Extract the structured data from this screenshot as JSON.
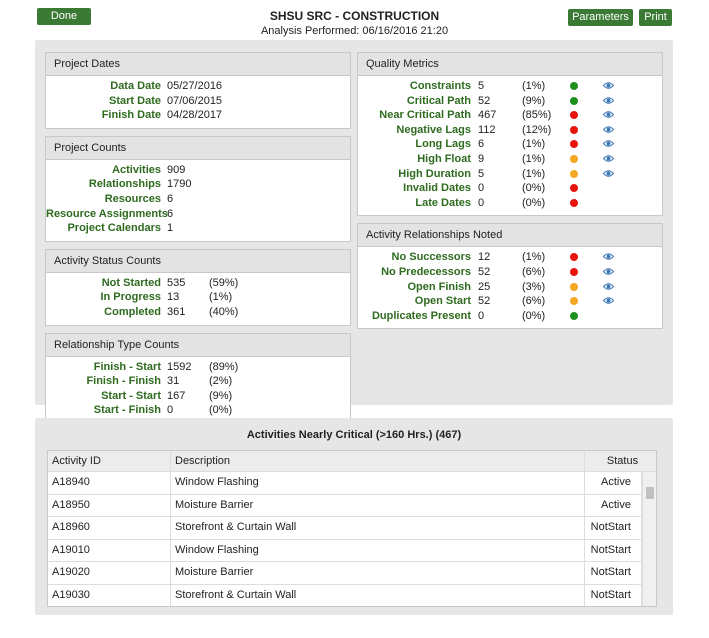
{
  "header": {
    "done": "Done",
    "title": "SHSU SRC - CONSTRUCTION",
    "subtitle": "Analysis Performed: 06/16/2016 21:20",
    "parameters": "Parameters",
    "print": "Print"
  },
  "left_panels": [
    {
      "title": "Project Dates",
      "rows": [
        {
          "label": "Data Date",
          "value": "05/27/2016"
        },
        {
          "label": "Start Date",
          "value": "07/06/2015"
        },
        {
          "label": "Finish Date",
          "value": "04/28/2017"
        }
      ]
    },
    {
      "title": "Project Counts",
      "rows": [
        {
          "label": "Activities",
          "value": 909
        },
        {
          "label": "Relationships",
          "value": 1790
        },
        {
          "label": "Resources",
          "value": 6
        },
        {
          "label": "Resource Assignments",
          "value": 6
        },
        {
          "label": "Project Calendars",
          "value": 1
        }
      ]
    },
    {
      "title": "Activity Status Counts",
      "rows": [
        {
          "label": "Not Started",
          "value": 535,
          "percent": "(59%)"
        },
        {
          "label": "In Progress",
          "value": 13,
          "percent": "(1%)"
        },
        {
          "label": "Completed",
          "value": 361,
          "percent": "(40%)"
        }
      ]
    },
    {
      "title": "Relationship Type Counts",
      "rows": [
        {
          "label": "Finish - Start",
          "value": 1592,
          "percent": "(89%)"
        },
        {
          "label": "Finish - Finish",
          "value": 31,
          "percent": "(2%)"
        },
        {
          "label": "Start - Start",
          "value": 167,
          "percent": "(9%)"
        },
        {
          "label": "Start - Finish",
          "value": 0,
          "percent": "(0%)"
        }
      ]
    }
  ],
  "right_panels": [
    {
      "title": "Quality Metrics",
      "rows": [
        {
          "label": "Constraints",
          "value": 5,
          "percent": "(1%)",
          "status": "#1f8f1f",
          "view": true
        },
        {
          "label": "Critical Path",
          "value": 52,
          "percent": "(9%)",
          "status": "#1f8f1f",
          "view": true
        },
        {
          "label": "Near Critical Path",
          "value": 467,
          "percent": "(85%)",
          "status": "#e8140e",
          "view": true
        },
        {
          "label": "Negative Lags",
          "value": 112,
          "percent": "(12%)",
          "status": "#e8140e",
          "view": true
        },
        {
          "label": "Long Lags",
          "value": 6,
          "percent": "(1%)",
          "status": "#e8140e",
          "view": true
        },
        {
          "label": "High Float",
          "value": 9,
          "percent": "(1%)",
          "status": "#f5a623",
          "view": true
        },
        {
          "label": "High Duration",
          "value": 5,
          "percent": "(1%)",
          "status": "#f5a623",
          "view": true
        },
        {
          "label": "Invalid Dates",
          "value": 0,
          "percent": "(0%)",
          "status": "#e8140e",
          "view": false
        },
        {
          "label": "Late Dates",
          "value": 0,
          "percent": "(0%)",
          "status": "#e8140e",
          "view": false
        }
      ]
    },
    {
      "title": "Activity Relationships Noted",
      "rows": [
        {
          "label": "No Successors",
          "value": 12,
          "percent": "(1%)",
          "status": "#e8140e",
          "view": true
        },
        {
          "label": "No Predecessors",
          "value": 52,
          "percent": "(6%)",
          "status": "#e8140e",
          "view": true
        },
        {
          "label": "Open Finish",
          "value": 25,
          "percent": "(3%)",
          "status": "#f5a623",
          "view": true
        },
        {
          "label": "Open Start",
          "value": 52,
          "percent": "(6%)",
          "status": "#f5a623",
          "view": true
        },
        {
          "label": "Duplicates Present",
          "value": 0,
          "percent": "(0%)",
          "status": "#1f8f1f",
          "view": false
        }
      ]
    }
  ],
  "table": {
    "title": "Activities Nearly Critical (>160 Hrs.) (467)",
    "columns": [
      "Activity ID",
      "Description",
      "Status"
    ],
    "rows": [
      [
        "A18940",
        "Window Flashing",
        "Active"
      ],
      [
        "A18950",
        "Moisture Barrier",
        "Active"
      ],
      [
        "A18960",
        "Storefront & Curtain Wall",
        "NotStart"
      ],
      [
        "A19010",
        "Window Flashing",
        "NotStart"
      ],
      [
        "A19020",
        "Moisture Barrier",
        "NotStart"
      ],
      [
        "A19030",
        "Storefront & Curtain Wall",
        "NotStart"
      ]
    ]
  }
}
